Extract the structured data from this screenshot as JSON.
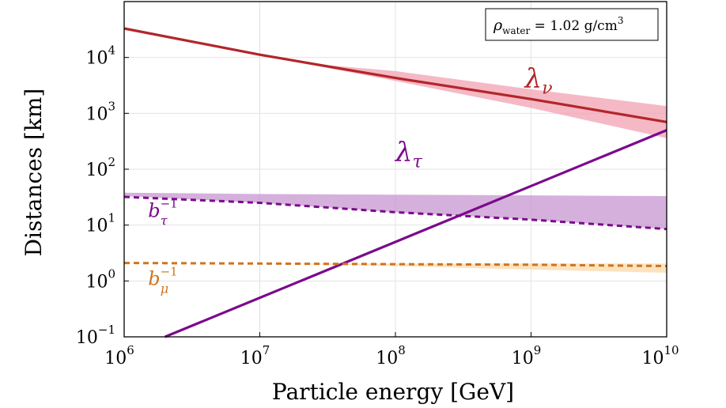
{
  "chart_data": {
    "type": "line",
    "xscale": "log",
    "yscale": "log",
    "xlim": [
      1000000,
      10000000000
    ],
    "ylim": [
      0.1,
      100000
    ],
    "xlabel": "Particle energy [GeV]",
    "ylabel": "Distances [km]",
    "grid": true,
    "x_ticks": [
      {
        "base": "10",
        "exp": "6",
        "value": 1000000
      },
      {
        "base": "10",
        "exp": "7",
        "value": 10000000
      },
      {
        "base": "10",
        "exp": "8",
        "value": 100000000
      },
      {
        "base": "10",
        "exp": "9",
        "value": 1000000000
      },
      {
        "base": "10",
        "exp": "10",
        "value": 10000000000
      }
    ],
    "y_ticks": [
      {
        "base": "10",
        "exp": "−1",
        "value": 0.1
      },
      {
        "base": "10",
        "exp": "0",
        "value": 1
      },
      {
        "base": "10",
        "exp": "1",
        "value": 10
      },
      {
        "base": "10",
        "exp": "2",
        "value": 100
      },
      {
        "base": "10",
        "exp": "3",
        "value": 1000
      },
      {
        "base": "10",
        "exp": "4",
        "value": 10000
      }
    ],
    "annotation": {
      "text": "ρ",
      "sub": "water",
      "value_text": " = 1.02 g/cm",
      "sup": "3",
      "position": "top-right"
    },
    "series": [
      {
        "name": "lambda_nu",
        "label": "λ",
        "label_sub": "ν",
        "color": "#b2262a",
        "dash": "solid",
        "label_at": [
          900000000,
          2900
        ],
        "x": [
          1000000,
          10000000,
          100000000,
          1000000000,
          10000000000
        ],
        "y": [
          33000,
          11200,
          4300,
          1800,
          700
        ]
      },
      {
        "name": "lambda_tau",
        "label": "λ",
        "label_sub": "τ",
        "color": "#7b0a8c",
        "dash": "solid",
        "label_at": [
          100000000,
          140
        ],
        "x": [
          2000000,
          10000000000
        ],
        "y": [
          0.1,
          500
        ]
      },
      {
        "name": "b_tau_inv",
        "label": "b",
        "label_sub": "τ",
        "label_sup": "−1",
        "color": "#7b0a8c",
        "dash": "dashed",
        "label_at": [
          1500000,
          14
        ],
        "x": [
          1000000,
          10000000,
          100000000,
          1000000000,
          10000000000
        ],
        "y": [
          32,
          25,
          17,
          12.5,
          8.5
        ]
      },
      {
        "name": "b_mu_inv",
        "label": "b",
        "label_sub": "μ",
        "label_sup": "−1",
        "color": "#d0741f",
        "dash": "dashed",
        "label_at": [
          1500000,
          0.85
        ],
        "x": [
          1000000,
          10000000,
          100000000,
          1000000000,
          10000000000
        ],
        "y": [
          2.1,
          2.05,
          2.0,
          1.95,
          1.85
        ]
      }
    ],
    "bands": [
      {
        "name": "lambda_nu_band",
        "color": "#f2a1b2",
        "x": [
          20000000,
          100000000,
          1000000000,
          10000000000
        ],
        "upper": [
          8000,
          5700,
          2700,
          1350
        ],
        "lower": [
          8000,
          3800,
          1250,
          360
        ]
      },
      {
        "name": "b_tau_band",
        "color": "#c795d0",
        "x": [
          1000000,
          10000000,
          100000000,
          1000000000,
          10000000000
        ],
        "upper": [
          38,
          36,
          35,
          34,
          33
        ],
        "lower": [
          33,
          25,
          17,
          12.5,
          8.5
        ]
      },
      {
        "name": "b_mu_band",
        "color": "#f9d9aa",
        "x": [
          10000000,
          100000000,
          1000000000,
          10000000000
        ],
        "upper": [
          2.05,
          2.05,
          2.05,
          2.05
        ],
        "lower": [
          2.05,
          1.85,
          1.6,
          1.4
        ]
      }
    ]
  }
}
